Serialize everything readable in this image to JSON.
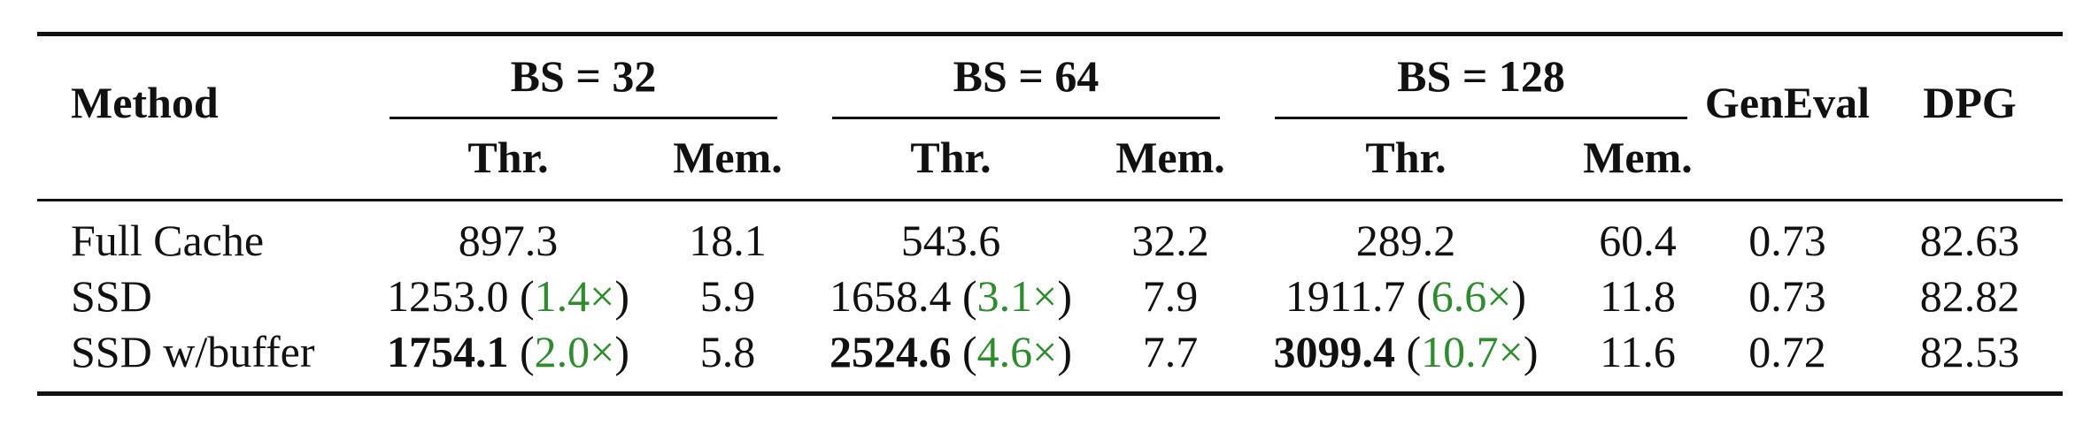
{
  "header": {
    "method": "Method",
    "groups": [
      {
        "label": "BS = 32",
        "thr": "Thr.",
        "mem": "Mem."
      },
      {
        "label": "BS = 64",
        "thr": "Thr.",
        "mem": "Mem."
      },
      {
        "label": "BS = 128",
        "thr": "Thr.",
        "mem": "Mem."
      }
    ],
    "geneval": "GenEval",
    "dpg": "DPG"
  },
  "colors": {
    "speedup": "#2e8b2e",
    "rule": "#111111"
  },
  "rows": [
    {
      "method": "Full Cache",
      "bs32": {
        "thr": "897.3",
        "speedup": "",
        "mem": "18.1"
      },
      "bs64": {
        "thr": "543.6",
        "speedup": "",
        "mem": "32.2"
      },
      "bs128": {
        "thr": "289.2",
        "speedup": "",
        "mem": "60.4"
      },
      "geneval": "0.73",
      "dpg": "82.63"
    },
    {
      "method": "SSD",
      "bs32": {
        "thr": "1253.0",
        "speedup": "1.4×",
        "mem": "5.9"
      },
      "bs64": {
        "thr": "1658.4",
        "speedup": "3.1×",
        "mem": "7.9"
      },
      "bs128": {
        "thr": "1911.7",
        "speedup": "6.6×",
        "mem": "11.8"
      },
      "geneval": "0.73",
      "dpg": "82.82"
    },
    {
      "method": "SSD w/buffer",
      "bs32": {
        "thr": "1754.1",
        "speedup": "2.0×",
        "mem": "5.8"
      },
      "bs64": {
        "thr": "2524.6",
        "speedup": "4.6×",
        "mem": "7.7"
      },
      "bs128": {
        "thr": "3099.4",
        "speedup": "10.7×",
        "mem": "11.6"
      },
      "geneval": "0.72",
      "dpg": "82.53"
    }
  ]
}
